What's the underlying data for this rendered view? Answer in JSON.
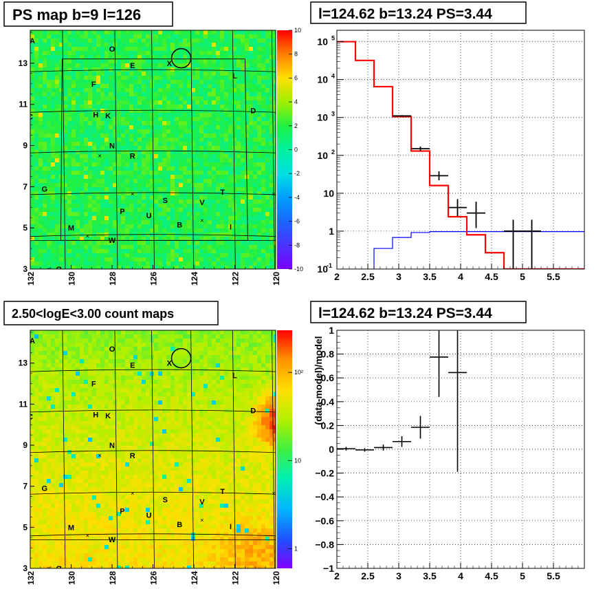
{
  "panels": {
    "ps_map": {
      "title": "PS map b=9 l=126",
      "x_ticks": [
        "132",
        "130",
        "128",
        "126",
        "124",
        "122",
        "120"
      ],
      "y_ticks": [
        "3",
        "5",
        "7",
        "9",
        "11",
        "13"
      ],
      "colorbar_ticks": [
        "10",
        "8",
        "6",
        "4",
        "2",
        "0",
        "-2",
        "-4",
        "-6",
        "-8",
        "-10"
      ],
      "colorbar_range": [
        -10,
        10
      ]
    },
    "count_map": {
      "title": "2.50<logE<3.00 count maps",
      "x_ticks": [
        "132",
        "130",
        "128",
        "126",
        "124",
        "122",
        "120"
      ],
      "y_ticks": [
        "3",
        "5",
        "7",
        "9",
        "11",
        "13"
      ],
      "colorbar_ticks": [
        "10²",
        "10",
        "1"
      ],
      "scale": "log"
    },
    "spectrum": {
      "title": "l=124.62 b=13.24 PS=3.44"
    },
    "residual": {
      "title": "l=124.62 b=13.24 PS=3.44"
    }
  },
  "source_labels": [
    {
      "text": "A",
      "l": 131.9,
      "b": 14.1
    },
    {
      "text": "O",
      "l": 128.0,
      "b": 13.7
    },
    {
      "text": "E",
      "l": 127.0,
      "b": 12.9
    },
    {
      "text": "X",
      "l": 125.2,
      "b": 13.0
    },
    {
      "text": "L",
      "l": 122.0,
      "b": 12.4
    },
    {
      "text": "F",
      "l": 128.9,
      "b": 12.0
    },
    {
      "text": "D",
      "l": 121.1,
      "b": 10.7
    },
    {
      "text": "C",
      "l": 132.0,
      "b": 10.4
    },
    {
      "text": "H",
      "l": 128.8,
      "b": 10.5
    },
    {
      "text": "K",
      "l": 128.2,
      "b": 10.45
    },
    {
      "text": "N",
      "l": 128.0,
      "b": 9.0
    },
    {
      "text": "R",
      "l": 127.0,
      "b": 8.5
    },
    {
      "text": "G",
      "l": 131.3,
      "b": 6.9
    },
    {
      "text": "T",
      "l": 122.6,
      "b": 6.75
    },
    {
      "text": "S",
      "l": 125.4,
      "b": 6.35
    },
    {
      "text": "V",
      "l": 123.6,
      "b": 6.25
    },
    {
      "text": "P",
      "l": 127.5,
      "b": 5.8
    },
    {
      "text": "U",
      "l": 126.2,
      "b": 5.6
    },
    {
      "text": "B",
      "l": 124.7,
      "b": 5.15
    },
    {
      "text": "I",
      "l": 122.2,
      "b": 5.05
    },
    {
      "text": "M",
      "l": 130.0,
      "b": 5.0
    },
    {
      "text": "W",
      "l": 128.0,
      "b": 4.4
    },
    {
      "text": "Q",
      "l": 130.6,
      "b": 3.0
    }
  ],
  "cross_markers": [
    {
      "l": 128.6,
      "b": 8.5
    },
    {
      "l": 127.0,
      "b": 6.65
    },
    {
      "l": 123.6,
      "b": 5.35
    },
    {
      "l": 129.2,
      "b": 4.6
    },
    {
      "l": 120.1,
      "b": 6.65
    },
    {
      "l": 131.1,
      "b": 3.0
    }
  ],
  "circle_marker": {
    "l": 124.62,
    "b": 13.24
  },
  "chart_data": [
    {
      "type": "heatmap",
      "title": "PS map b=9 l=126",
      "x_range": [
        132,
        120
      ],
      "y_range": [
        3,
        14.6
      ],
      "z_range": [
        -10,
        10
      ],
      "note_values": "mostly near 1 to 3 across the map"
    },
    {
      "type": "heatmap",
      "title": "2.50<logE<3.00 count maps",
      "x_range": [
        132,
        120
      ],
      "y_range": [
        3,
        14.6
      ],
      "z_scale": "log",
      "z_range": [
        0.6,
        300
      ]
    },
    {
      "type": "line",
      "title": "l=124.62 b=13.24 PS=3.44",
      "x_range": [
        2,
        6
      ],
      "y_range": [
        0.1,
        200000
      ],
      "y_scale": "log",
      "x_ticks": [
        "2",
        "2.5",
        "3",
        "3.5",
        "4",
        "4.5",
        "5",
        "5.5"
      ],
      "y_ticks": [
        {
          "base": "10",
          "exp": "-1",
          "value": 0.1
        },
        {
          "base": "1",
          "exp": "",
          "value": 1
        },
        {
          "base": "10",
          "exp": "",
          "value": 10
        },
        {
          "base": "10",
          "exp": "2",
          "value": 100
        },
        {
          "base": "10",
          "exp": "3",
          "value": 1000
        },
        {
          "base": "10",
          "exp": "4",
          "value": 10000
        },
        {
          "base": "10",
          "exp": "5",
          "value": 100000
        }
      ],
      "model_total_steps": [
        {
          "x0": 2.0,
          "x1": 2.3,
          "y": 100000
        },
        {
          "x0": 2.3,
          "x1": 2.6,
          "y": 32000
        },
        {
          "x0": 2.6,
          "x1": 2.9,
          "y": 6500
        },
        {
          "x0": 2.9,
          "x1": 3.2,
          "y": 1050
        },
        {
          "x0": 3.2,
          "x1": 3.5,
          "y": 130
        },
        {
          "x0": 3.5,
          "x1": 3.8,
          "y": 16
        },
        {
          "x0": 3.8,
          "x1": 4.1,
          "y": 2.4
        },
        {
          "x0": 4.1,
          "x1": 4.4,
          "y": 0.8
        },
        {
          "x0": 4.4,
          "x1": 4.7,
          "y": 0.27
        },
        {
          "x0": 4.7,
          "x1": 6.0,
          "y": 0.1
        }
      ],
      "model_source_steps": [
        {
          "x0": 2.6,
          "x1": 2.9,
          "y": 0.35
        },
        {
          "x0": 2.9,
          "x1": 3.2,
          "y": 0.68
        },
        {
          "x0": 3.2,
          "x1": 3.5,
          "y": 0.92
        },
        {
          "x0": 3.5,
          "x1": 6.0,
          "y": 0.97
        }
      ],
      "data_points": [
        {
          "x": 3.05,
          "xlo": 2.9,
          "xhi": 3.2,
          "y": 1100,
          "ylo": 1050,
          "yhi": 1150
        },
        {
          "x": 3.35,
          "xlo": 3.2,
          "xhi": 3.5,
          "y": 150,
          "ylo": 130,
          "yhi": 170
        },
        {
          "x": 3.65,
          "xlo": 3.5,
          "xhi": 3.8,
          "y": 29,
          "ylo": 22,
          "yhi": 38
        },
        {
          "x": 3.95,
          "xlo": 3.8,
          "xhi": 4.1,
          "y": 4.2,
          "ylo": 2.5,
          "yhi": 7
        },
        {
          "x": 4.25,
          "xlo": 4.1,
          "xhi": 4.4,
          "y": 3.0,
          "ylo": 1.2,
          "yhi": 6
        },
        {
          "x": 4.85,
          "xlo": 4.7,
          "xhi": 5.0,
          "y": 1.0,
          "ylo": 0.1,
          "yhi": 2.0
        },
        {
          "x": 5.15,
          "xlo": 5.0,
          "xhi": 5.3,
          "y": 1.0,
          "ylo": 0.1,
          "yhi": 2.0
        }
      ]
    },
    {
      "type": "scatter",
      "title": "l=124.62 b=13.24 PS=3.44",
      "ylabel": "(data-model)/model",
      "x_range": [
        2,
        6
      ],
      "y_range": [
        -1,
        1
      ],
      "x_ticks": [
        "2",
        "2.5",
        "3",
        "3.5",
        "4",
        "4.5",
        "5",
        "5.5"
      ],
      "y_ticks": [
        "1",
        "0.8",
        "0.6",
        "0.4",
        "0.2",
        "0",
        "−0.2",
        "−0.4",
        "−0.6",
        "−0.8",
        "−1"
      ],
      "points": [
        {
          "x": 2.15,
          "xlo": 2.0,
          "xhi": 2.3,
          "y": 0.005,
          "ylo": -0.01,
          "yhi": 0.02
        },
        {
          "x": 2.45,
          "xlo": 2.3,
          "xhi": 2.6,
          "y": -0.005,
          "ylo": -0.02,
          "yhi": 0.01
        },
        {
          "x": 2.75,
          "xlo": 2.6,
          "xhi": 2.9,
          "y": 0.015,
          "ylo": -0.01,
          "yhi": 0.04
        },
        {
          "x": 3.05,
          "xlo": 2.9,
          "xhi": 3.2,
          "y": 0.065,
          "ylo": 0.02,
          "yhi": 0.11
        },
        {
          "x": 3.35,
          "xlo": 3.2,
          "xhi": 3.5,
          "y": 0.185,
          "ylo": 0.09,
          "yhi": 0.28
        },
        {
          "x": 3.65,
          "xlo": 3.5,
          "xhi": 3.8,
          "y": 0.775,
          "ylo": 0.44,
          "yhi": 1.0
        },
        {
          "x": 3.95,
          "xlo": 3.8,
          "xhi": 4.1,
          "y": 0.645,
          "ylo": -0.19,
          "yhi": 1.0
        }
      ]
    }
  ],
  "colors": {
    "model_total": "#ff0000",
    "model_source": "#0000ff",
    "data": "#000000",
    "grid": "#000000"
  }
}
